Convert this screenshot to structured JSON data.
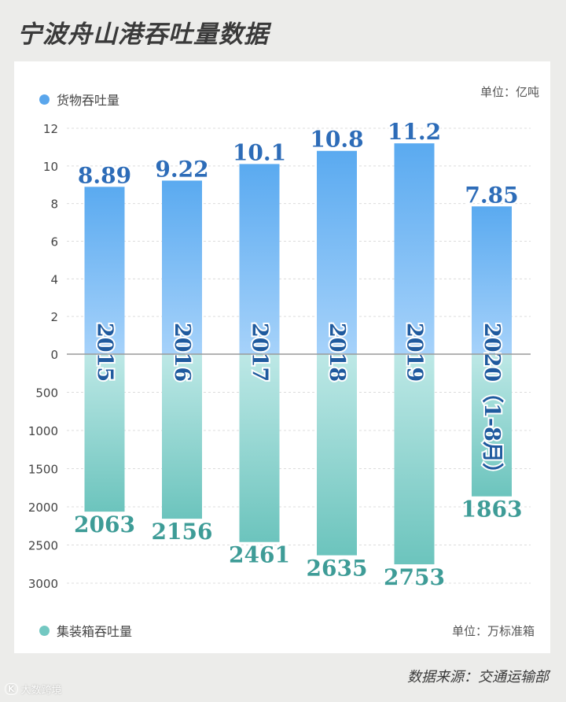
{
  "title": "宁波舟山港吞吐量数据",
  "source": "数据来源：交通运输部",
  "watermark": "大数跨境",
  "watermark_icon": "K",
  "colors": {
    "cargo_top": "#5aaaf0",
    "cargo_bottom": "#a6d2fa",
    "container_top": "#bde8e6",
    "container_bottom": "#6cc4bd",
    "cargo_label": "#2d6cb8",
    "container_label": "#3e9c97",
    "cargo_dot": "#5aa6ec",
    "container_dot": "#73c8c2"
  },
  "chart_data": {
    "type": "bar",
    "categories": [
      "2015",
      "2016",
      "2017",
      "2018",
      "2019",
      "2020（1-8月）"
    ],
    "series": [
      {
        "name": "货物吞吐量",
        "unit": "单位：亿吨",
        "values": [
          8.89,
          9.22,
          10.1,
          10.8,
          11.2,
          7.85
        ],
        "labels": [
          "8.89",
          "9.22",
          "10.1",
          "10.8",
          "11.2",
          "7.85"
        ],
        "axis_ticks": [
          "0",
          "2",
          "4",
          "6",
          "8",
          "10",
          "12"
        ],
        "ylim": [
          0,
          12
        ]
      },
      {
        "name": "集装箱吞吐量",
        "unit": "单位：万标准箱",
        "values": [
          2063,
          2156,
          2461,
          2635,
          2753,
          1863
        ],
        "labels": [
          "2063",
          "2156",
          "2461",
          "2635",
          "2753",
          "1863"
        ],
        "axis_ticks": [
          "500",
          "1000",
          "1500",
          "2000",
          "2500",
          "3000"
        ],
        "ylim": [
          0,
          3000
        ]
      }
    ],
    "grid": "horizontal dashed",
    "legend": "top-left and bottom-left"
  }
}
